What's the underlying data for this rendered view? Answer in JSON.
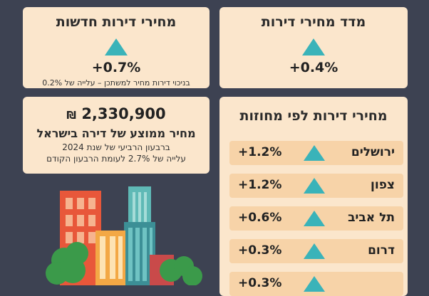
{
  "cards": {
    "index": {
      "title": "מדד מחירי דירות",
      "value": "+0.4%"
    },
    "new": {
      "title": "מחירי דירות חדשות",
      "value": "+0.7%",
      "note": "בניכוי דירות מחיר למשתכן – עלייה של 0.2%"
    },
    "average": {
      "price": "2,330,900",
      "currency": "₪",
      "title": "מחיר ממוצע של דירה בישראל",
      "line1": "ברבעון הרביעי של שנת 2024",
      "line2": "עלייה של 2.7% לעומת הרבעון הקודם"
    },
    "regions": {
      "title": "מחירי דירות לפי מחוזות",
      "items": [
        {
          "name": "ירושלים",
          "value": "+1.2%"
        },
        {
          "name": "צפון",
          "value": "+1.2%"
        },
        {
          "name": "תל אביב",
          "value": "+0.6%"
        },
        {
          "name": "דרום",
          "value": "+0.3%"
        },
        {
          "name": "",
          "value": "+0.3%"
        }
      ]
    }
  },
  "colors": {
    "background": "#3d4252",
    "card": "#fbe6cc",
    "accent": "#3ab3b9"
  }
}
